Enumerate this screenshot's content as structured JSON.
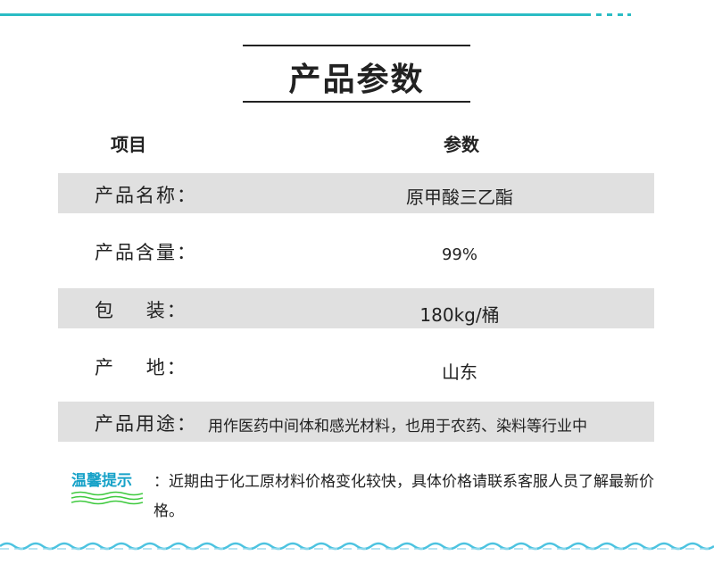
{
  "title": "产品参数",
  "header": {
    "item": "项目",
    "param": "参数"
  },
  "rows": [
    {
      "label": "产品名称：",
      "value": "原甲酸三乙酯"
    },
    {
      "label": "产品含量：",
      "value": "99%"
    },
    {
      "label": "包    装：",
      "value": "180kg/桶"
    },
    {
      "label": "产    地：",
      "value": "山东"
    },
    {
      "label": "产品用途：",
      "value": "用作医药中间体和感光材料，也用于农药、染料等行业中"
    }
  ],
  "tip": {
    "label": "温馨提示",
    "text": "：近期由于化工原材料价格变化较快，具体价格请联系客服人员了解最新价格。"
  },
  "colors": {
    "accent": "#2bbcc4",
    "tip": "#17a2c8",
    "wave": "#3ec93e",
    "row_gray": "#e0e0e0"
  }
}
